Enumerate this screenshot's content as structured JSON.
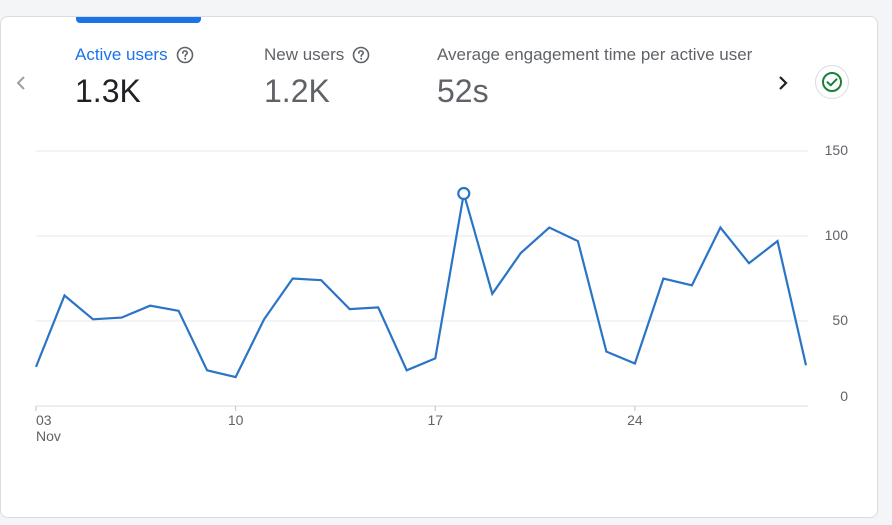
{
  "metrics": [
    {
      "label": "Active users",
      "value": "1.3K"
    },
    {
      "label": "New users",
      "value": "1.2K"
    },
    {
      "label": "Average engagement time per active user",
      "value": "52s"
    }
  ],
  "colors": {
    "accent": "#1a73e8",
    "series": "#2a74c6",
    "status_green": "#188038"
  },
  "icons": {
    "prev": "chevron-left-icon",
    "next": "chevron-right-icon",
    "help": "help-circle-icon",
    "status": "check-circle-icon"
  },
  "chart_data": {
    "type": "line",
    "title": "",
    "xlabel": "",
    "ylabel": "",
    "x": [
      3,
      4,
      5,
      6,
      7,
      8,
      9,
      10,
      11,
      12,
      13,
      14,
      15,
      16,
      17,
      18,
      19,
      20,
      21,
      22,
      23,
      24,
      25,
      26,
      27,
      28,
      29,
      30
    ],
    "series": [
      {
        "name": "Active users",
        "values": [
          23,
          65,
          51,
          52,
          59,
          56,
          21,
          17,
          51,
          75,
          74,
          57,
          58,
          21,
          28,
          125,
          66,
          90,
          105,
          97,
          32,
          25,
          75,
          71,
          105,
          84,
          97,
          24
        ]
      }
    ],
    "x_ticks": [
      {
        "x": 3,
        "label": "03",
        "sublabel": "Nov"
      },
      {
        "x": 10,
        "label": "10",
        "sublabel": ""
      },
      {
        "x": 17,
        "label": "17",
        "sublabel": ""
      },
      {
        "x": 24,
        "label": "24",
        "sublabel": ""
      }
    ],
    "y_ticks": [
      0,
      50,
      100,
      150
    ],
    "ylim": [
      0,
      150
    ],
    "highlight_x": 18,
    "grid": true,
    "y_axis_side": "right"
  }
}
